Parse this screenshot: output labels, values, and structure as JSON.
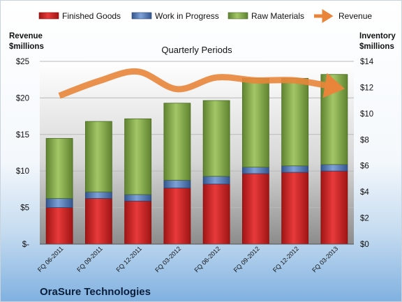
{
  "chart_data": {
    "type": "bar",
    "stacked": true,
    "title": "",
    "subtitle": "Quarterly Periods",
    "company": "OraSure Technologies",
    "ylabel_left": [
      "Revenue",
      "$millions"
    ],
    "ylabel_right": [
      "Inventory",
      "$millions"
    ],
    "categories": [
      "FQ 06-2011",
      "FQ 09-2011",
      "FQ 12-2011",
      "FQ 03-2012",
      "FQ 06-2012",
      "FQ 09-2012",
      "FQ 12-2012",
      "FQ 03-2013"
    ],
    "y_left_ticks": [
      "$-",
      "$5",
      "$10",
      "$15",
      "$20",
      "$25"
    ],
    "y_left_lim": [
      0,
      25
    ],
    "y_right_ticks": [
      "$0",
      "$2",
      "$4",
      "$6",
      "$8",
      "$10",
      "$12",
      "$14"
    ],
    "y_right_lim": [
      0,
      14
    ],
    "legend_position": "top",
    "grid": true,
    "series": [
      {
        "name": "Finished Goods",
        "axis": "right",
        "color": "#d92b2b",
        "values": [
          2.8,
          3.5,
          3.3,
          4.3,
          4.6,
          5.4,
          5.5,
          5.6
        ]
      },
      {
        "name": "Work in Progress",
        "axis": "right",
        "color": "#5a82bf",
        "values": [
          0.7,
          0.5,
          0.5,
          0.6,
          0.6,
          0.5,
          0.5,
          0.5
        ]
      },
      {
        "name": "Raw Materials",
        "axis": "right",
        "color": "#8ab34a",
        "values": [
          4.6,
          5.4,
          5.8,
          5.9,
          5.8,
          6.8,
          6.7,
          6.9
        ]
      },
      {
        "name": "Revenue",
        "axis": "left",
        "type": "line",
        "color": "#e8853a",
        "values": [
          20.3,
          22.3,
          23.6,
          21.2,
          22.8,
          22.4,
          22.4,
          21.5
        ]
      }
    ]
  }
}
